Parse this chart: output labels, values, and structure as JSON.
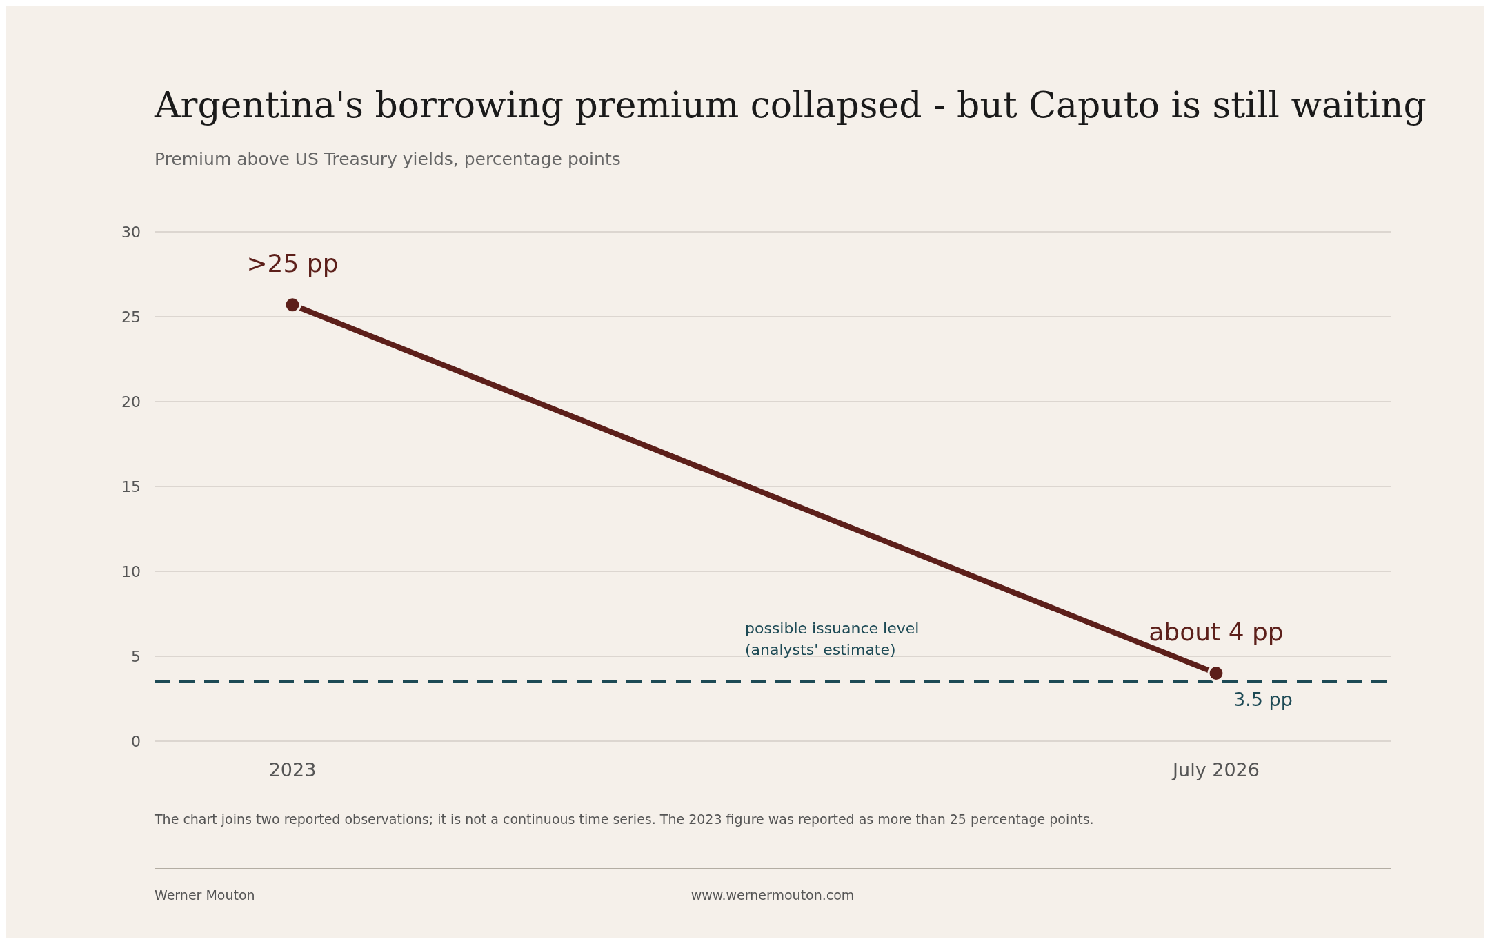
{
  "chart_data": {
    "type": "line",
    "title": "Argentina's borrowing premium collapsed - but Caputo is still waiting",
    "subtitle": "Premium above US Treasury yields, percentage points",
    "categories": [
      "2023",
      "July 2026"
    ],
    "series": [
      {
        "color": "#5c1f1a",
        "values": [
          25.7,
          4
        ]
      }
    ],
    "ylim": [
      0,
      30
    ],
    "yticks": [
      0,
      5,
      10,
      15,
      20,
      25,
      30
    ],
    "grid": "y",
    "marker": "circle",
    "line_style": "solid",
    "ref_lines": [
      {
        "axis": "y",
        "value": 3.5,
        "label": "3.5 pp",
        "color": "#1d4a55",
        "line_style": "dashed"
      }
    ],
    "annotations": [
      {
        "text": ">25 pp",
        "x": "2023",
        "y": 25.7
      },
      {
        "text": "about 4 pp",
        "x": "July 2026",
        "y": 4
      },
      {
        "text": "possible issuance level\n(analysts' estimate)",
        "y": 3.5
      },
      "The chart joins two reported observations; it is not a continuous time series. The 2023 figure was reported as more than 25 percentage points.",
      "Werner Mouton",
      "www.wernermouton.com"
    ]
  }
}
